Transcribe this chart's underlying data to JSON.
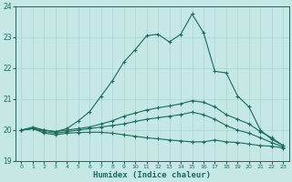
{
  "xlabel": "Humidex (Indice chaleur)",
  "bg_color": "#c5e8e5",
  "line_color": "#1a6b5a",
  "grid_color": "#a8d4d0",
  "xlim": [
    -0.5,
    23.5
  ],
  "ylim": [
    19,
    24
  ],
  "xticks": [
    0,
    1,
    2,
    3,
    4,
    5,
    6,
    7,
    8,
    9,
    10,
    11,
    12,
    13,
    14,
    15,
    16,
    17,
    18,
    19,
    20,
    21,
    22,
    23
  ],
  "yticks": [
    19,
    20,
    21,
    22,
    23,
    24
  ],
  "lines": [
    {
      "x": [
        0,
        1,
        2,
        3,
        4,
        5,
        6,
        7,
        8,
        9,
        10,
        11,
        12,
        13,
        14,
        15,
        16,
        17,
        18,
        19,
        20,
        21,
        22,
        23
      ],
      "y": [
        20.0,
        20.1,
        20.0,
        19.95,
        20.05,
        20.3,
        20.6,
        21.1,
        21.6,
        22.2,
        22.6,
        23.05,
        23.1,
        22.85,
        23.1,
        23.75,
        23.15,
        21.9,
        21.85,
        21.1,
        20.75,
        20.0,
        19.7,
        19.5
      ]
    },
    {
      "x": [
        0,
        1,
        2,
        3,
        4,
        5,
        6,
        7,
        8,
        9,
        10,
        11,
        12,
        13,
        14,
        15,
        16,
        17,
        18,
        19,
        20,
        21,
        22,
        23
      ],
      "y": [
        20.0,
        20.05,
        20.0,
        19.95,
        20.0,
        20.05,
        20.1,
        20.2,
        20.3,
        20.45,
        20.55,
        20.65,
        20.72,
        20.78,
        20.85,
        20.95,
        20.9,
        20.75,
        20.5,
        20.35,
        20.2,
        19.95,
        19.75,
        19.5
      ]
    },
    {
      "x": [
        0,
        1,
        2,
        3,
        4,
        5,
        6,
        7,
        8,
        9,
        10,
        11,
        12,
        13,
        14,
        15,
        16,
        17,
        18,
        19,
        20,
        21,
        22,
        23
      ],
      "y": [
        20.0,
        20.05,
        19.95,
        19.9,
        19.95,
        20.0,
        20.05,
        20.1,
        20.15,
        20.2,
        20.28,
        20.35,
        20.4,
        20.45,
        20.5,
        20.58,
        20.5,
        20.35,
        20.15,
        20.0,
        19.9,
        19.75,
        19.6,
        19.45
      ]
    },
    {
      "x": [
        0,
        1,
        2,
        3,
        4,
        5,
        6,
        7,
        8,
        9,
        10,
        11,
        12,
        13,
        14,
        15,
        16,
        17,
        18,
        19,
        20,
        21,
        22,
        23
      ],
      "y": [
        20.0,
        20.05,
        19.9,
        19.85,
        19.9,
        19.92,
        19.93,
        19.93,
        19.9,
        19.85,
        19.8,
        19.75,
        19.72,
        19.68,
        19.65,
        19.62,
        19.62,
        19.68,
        19.62,
        19.6,
        19.55,
        19.5,
        19.48,
        19.42
      ]
    }
  ]
}
